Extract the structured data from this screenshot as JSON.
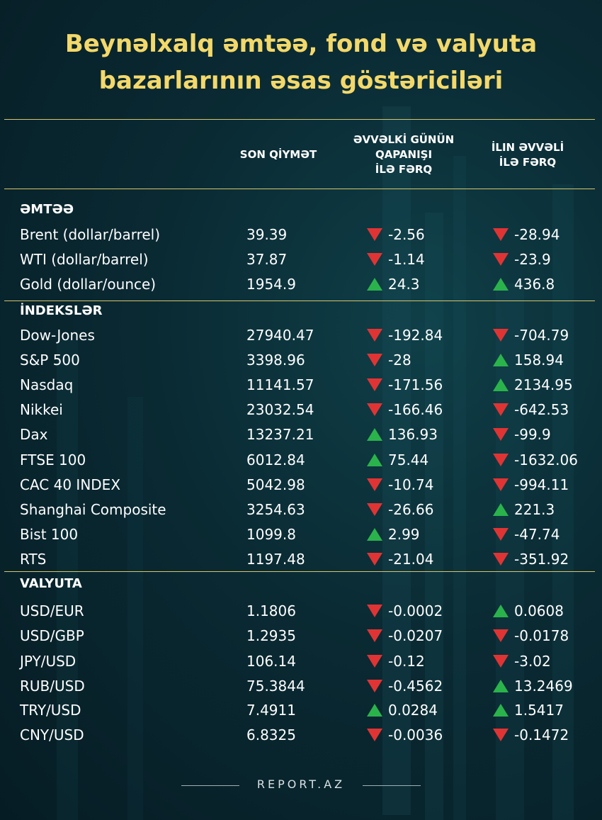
{
  "title_line1": "Beynəlxalq əmtəə, fond və valyuta",
  "title_line2": "bazarlarının əsas göstəriciləri",
  "headers": {
    "price": "SON QİYMƏT",
    "prev_l1": "ƏVVƏLKİ GÜNÜN",
    "prev_l2": "QAPANIŞI",
    "prev_l3": "İLƏ FƏRQ",
    "year_l1": "İLIN ƏVVƏLİ",
    "year_l2": "İLƏ FƏRQ"
  },
  "colors": {
    "title": "#f3d86a",
    "up": "#2bb34b",
    "down": "#e03434",
    "rule": "#d8c56a"
  },
  "sections": [
    {
      "title": "ƏMTƏƏ",
      "rows": [
        {
          "name": "Brent (dollar/barrel)",
          "price": "39.39",
          "ch1": "-2.56",
          "d1": "down",
          "ch2": "-28.94",
          "d2": "down"
        },
        {
          "name": "WTI (dollar/barrel)",
          "price": "37.87",
          "ch1": "-1.14",
          "d1": "down",
          "ch2": "-23.9",
          "d2": "down"
        },
        {
          "name": "Gold (dollar/ounce)",
          "price": "1954.9",
          "ch1": "24.3",
          "d1": "up",
          "ch2": "436.8",
          "d2": "up"
        }
      ]
    },
    {
      "title": "İNDEKSLƏR",
      "rows": [
        {
          "name": "Dow-Jones",
          "price": "27940.47",
          "ch1": "-192.84",
          "d1": "down",
          "ch2": "-704.79",
          "d2": "down"
        },
        {
          "name": "S&P 500",
          "price": "3398.96",
          "ch1": "-28",
          "d1": "down",
          "ch2": "158.94",
          "d2": "up"
        },
        {
          "name": "Nasdaq",
          "price": "11141.57",
          "ch1": "-171.56",
          "d1": "down",
          "ch2": "2134.95",
          "d2": "up"
        },
        {
          "name": "Nikkei",
          "price": "23032.54",
          "ch1": "-166.46",
          "d1": "down",
          "ch2": "-642.53",
          "d2": "down"
        },
        {
          "name": "Dax",
          "price": "13237.21",
          "ch1": "136.93",
          "d1": "up",
          "ch2": "-99.9",
          "d2": "down"
        },
        {
          "name": "FTSE 100",
          "price": "6012.84",
          "ch1": "75.44",
          "d1": "up",
          "ch2": "-1632.06",
          "d2": "down"
        },
        {
          "name": "CAC 40 INDEX",
          "price": "5042.98",
          "ch1": "-10.74",
          "d1": "down",
          "ch2": "-994.11",
          "d2": "down"
        },
        {
          "name": "Shanghai Composite",
          "price": "3254.63",
          "ch1": "-26.66",
          "d1": "down",
          "ch2": "221.3",
          "d2": "up"
        },
        {
          "name": "Bist 100",
          "price": "1099.8",
          "ch1": "2.99",
          "d1": "up",
          "ch2": "-47.74",
          "d2": "down"
        },
        {
          "name": "RTS",
          "price": "1197.48",
          "ch1": "-21.04",
          "d1": "down",
          "ch2": "-351.92",
          "d2": "down"
        }
      ]
    },
    {
      "title": "VALYUTA",
      "rows": [
        {
          "name": "USD/EUR",
          "price": "1.1806",
          "ch1": "-0.0002",
          "d1": "down",
          "ch2": "0.0608",
          "d2": "up"
        },
        {
          "name": "USD/GBP",
          "price": "1.2935",
          "ch1": "-0.0207",
          "d1": "down",
          "ch2": "-0.0178",
          "d2": "down"
        },
        {
          "name": "JPY/USD",
          "price": "106.14",
          "ch1": "-0.12",
          "d1": "down",
          "ch2": "-3.02",
          "d2": "down"
        },
        {
          "name": "RUB/USD",
          "price": "75.3844",
          "ch1": "-0.4562",
          "d1": "down",
          "ch2": "13.2469",
          "d2": "up"
        },
        {
          "name": "TRY/USD",
          "price": "7.4911",
          "ch1": "0.0284",
          "d1": "up",
          "ch2": "1.5417",
          "d2": "up"
        },
        {
          "name": "CNY/USD",
          "price": "6.8325",
          "ch1": "-0.0036",
          "d1": "down",
          "ch2": "-0.1472",
          "d2": "down"
        }
      ]
    }
  ],
  "footer": "REPORT.AZ"
}
